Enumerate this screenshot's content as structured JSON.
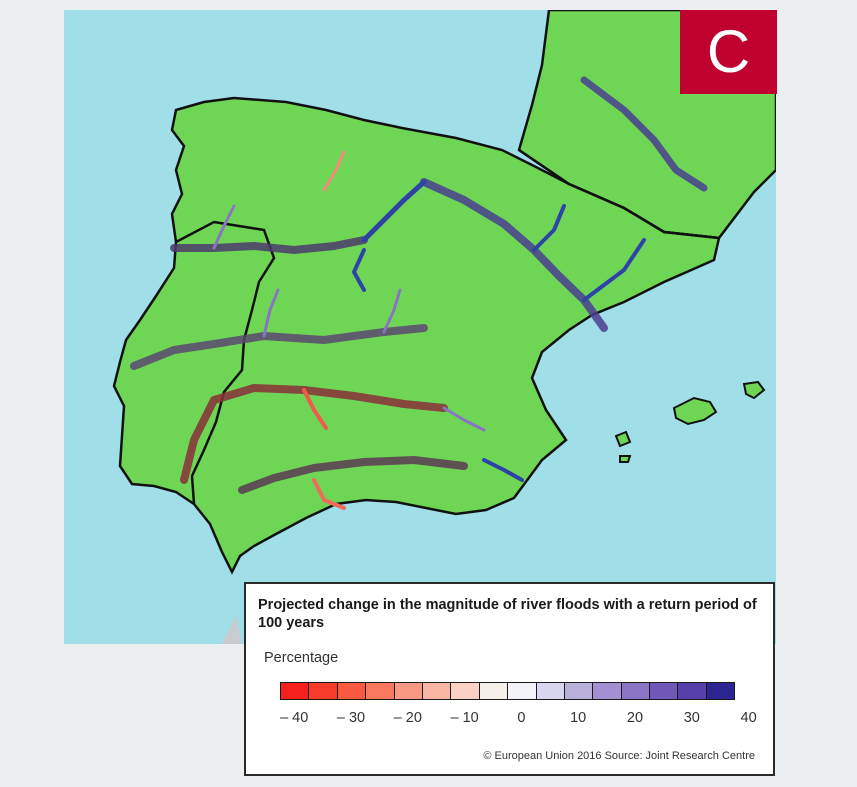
{
  "map": {
    "badge_letter": "C",
    "colors": {
      "sea": "#a0dfe8",
      "land": "#6fd655",
      "border": "#111111",
      "background": "#eceff2",
      "badge": "#c0002e"
    },
    "icons": [
      "river-network",
      "country-border"
    ]
  },
  "legend": {
    "title": "Projected change in the magnitude of river floods with a return period of 100 years",
    "unit_label": "Percentage",
    "swatches": [
      "#f5211c",
      "#f73d2a",
      "#f75a40",
      "#f8785d",
      "#f99883",
      "#fab5a4",
      "#fcd1c5",
      "#f5f0ea",
      "#f4f4f8",
      "#d9d6f0",
      "#b8b0d8",
      "#a28fd4",
      "#8a74c4",
      "#6f58b8",
      "#5840ab",
      "#2a2590"
    ],
    "ticks": [
      "– 40",
      "– 30",
      "– 20",
      "– 10",
      "0",
      "10",
      "20",
      "30",
      "40"
    ],
    "source": "© European Union 2016 Source: Joint Research Centre"
  }
}
